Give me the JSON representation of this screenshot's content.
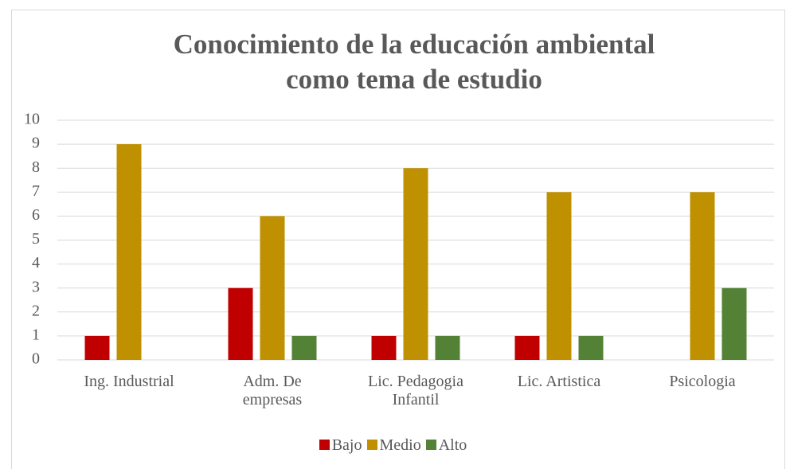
{
  "chart_data": {
    "type": "bar",
    "title": "Conocimiento de la educación ambiental como tema de estudio",
    "categories": [
      "Ing. Industrial",
      "Adm. De empresas",
      "Lic. Pedagogia Infantil",
      "Lic. Artistica",
      "Psicologia"
    ],
    "series": [
      {
        "name": "Bajo",
        "color": "#c00000",
        "values": [
          1,
          3,
          1,
          1,
          0
        ]
      },
      {
        "name": "Medio",
        "color": "#bf9000",
        "values": [
          9,
          6,
          8,
          7,
          7
        ]
      },
      {
        "name": "Alto",
        "color": "#538135",
        "values": [
          0,
          1,
          1,
          1,
          3
        ]
      }
    ],
    "ylim": [
      0,
      10
    ],
    "yticks": [
      0,
      1,
      2,
      3,
      4,
      5,
      6,
      7,
      8,
      9,
      10
    ],
    "grid": true,
    "legend": "bottom"
  }
}
